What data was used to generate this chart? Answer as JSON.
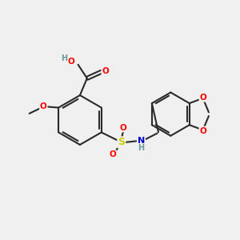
{
  "background_color": "#f0f0f0",
  "bond_color": "#2a2a2a",
  "atom_colors": {
    "O": "#ff0000",
    "N": "#0000cc",
    "S": "#cccc00",
    "C": "#2a2a2a",
    "H": "#6a9a9a"
  },
  "figsize": [
    3.0,
    3.0
  ],
  "dpi": 100
}
